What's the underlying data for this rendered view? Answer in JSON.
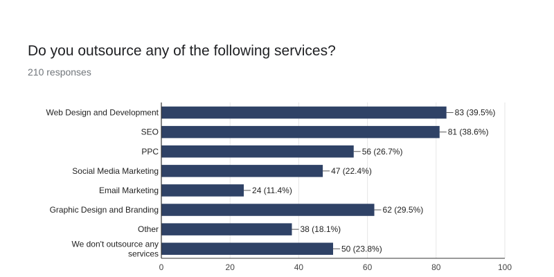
{
  "question": {
    "title": "Do you outsource any of the following services?",
    "responses": "210 responses"
  },
  "colors": {
    "bar": "#2f4266",
    "grid": "#e6e6e6",
    "axis": "#333333"
  },
  "chart_data": {
    "type": "bar",
    "orientation": "horizontal",
    "title": "",
    "xlabel": "",
    "ylabel": "",
    "categories": [
      "Web Design and Development",
      "SEO",
      "PPC",
      "Social Media Marketing",
      "Email Marketing",
      "Graphic Design and Branding",
      "Other",
      "We don't outsource any services"
    ],
    "values": [
      83,
      81,
      56,
      47,
      24,
      62,
      38,
      50
    ],
    "data_labels": [
      "83 (39.5%)",
      "81 (38.6%)",
      "56 (26.7%)",
      "47 (22.4%)",
      "24 (11.4%)",
      "62 (29.5%)",
      "38 (18.1%)",
      "50 (23.8%)"
    ],
    "xlim": [
      0,
      100
    ],
    "ticks": [
      0,
      20,
      40,
      60,
      80,
      100
    ],
    "grid": true
  }
}
